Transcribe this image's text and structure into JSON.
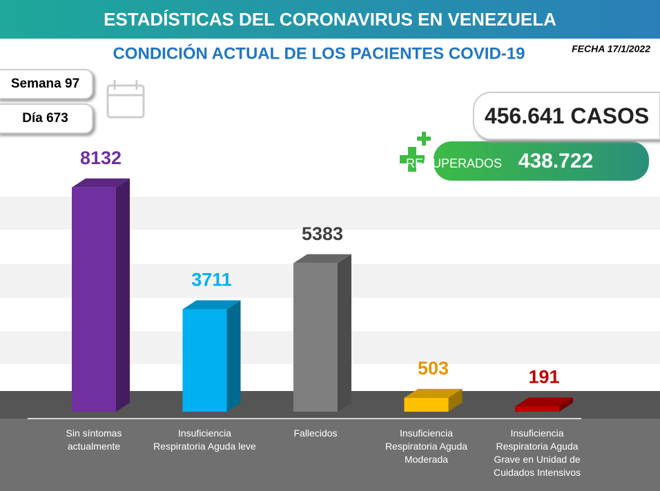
{
  "header": {
    "title": "ESTADÍSTICAS DEL CORONAVIRUS EN VENEZUELA",
    "subtitle": "CONDICIÓN ACTUAL DE LOS PACIENTES COVID-19",
    "date": "FECHA 17/1/2022",
    "week": "Semana 97",
    "day": "Día 673",
    "cases": "456.641 CASOS",
    "recovered_label": "RECUPERADOS",
    "recovered_value": "438.722"
  },
  "chart_data": {
    "type": "bar",
    "categories": [
      "Sin síntomas actualmente",
      "Insuficiencia Respiratoria Aguda leve",
      "Fallecidos",
      "Insuficiencia Respiratoria Aguda Moderada",
      "Insuficiencia Respiratoria Aguda Grave en Unidad de Cuidados Intensivos"
    ],
    "values": [
      8132,
      3711,
      5383,
      503,
      191
    ],
    "colors": [
      "#7030a0",
      "#00b0f0",
      "#7f7f7f",
      "#ffc000",
      "#c00000"
    ],
    "label_colors": [
      "#7030a0",
      "#00b0f0",
      "#404040",
      "#e69500",
      "#c00000"
    ]
  }
}
